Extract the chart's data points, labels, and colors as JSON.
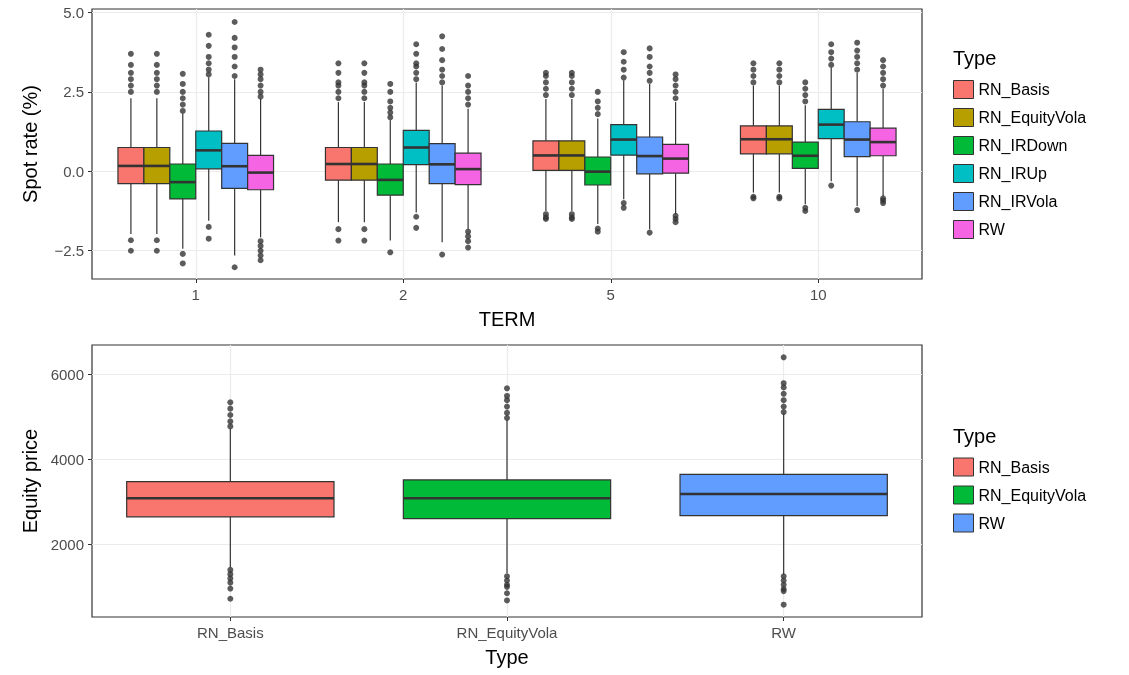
{
  "chart_data": [
    {
      "type": "box",
      "xlabel": "TERM",
      "ylabel": "Spot rate (%)",
      "legend_title": "Type",
      "legend": "right",
      "grid": true,
      "categories": [
        "1",
        "2",
        "5",
        "10"
      ],
      "ylim": [
        -3.39,
        5.11
      ],
      "yticks": [
        {
          "value": -2.5,
          "label": "−2.5"
        },
        {
          "value": 0,
          "label": "0.0"
        },
        {
          "value": 2.5,
          "label": "2.5"
        },
        {
          "value": 5,
          "label": "5.0"
        }
      ],
      "series": [
        {
          "name": "RN_Basis",
          "color": "#f8766d",
          "boxes": [
            {
              "low": -1.97,
              "q1": -0.39,
              "median": 0.17,
              "q3": 0.75,
              "high": 2.3,
              "outliers": [
                2.5,
                2.7,
                2.9,
                3.1,
                3.35,
                3.7,
                -2.17,
                -2.5
              ]
            },
            {
              "low": -1.6,
              "q1": -0.28,
              "median": 0.23,
              "q3": 0.75,
              "high": 2.18,
              "outliers": [
                2.3,
                2.5,
                2.7,
                2.8,
                3.1,
                3.4,
                -1.82,
                -2.18
              ]
            },
            {
              "low": -1.25,
              "q1": 0.03,
              "median": 0.5,
              "q3": 0.96,
              "high": 2.28,
              "outliers": [
                2.4,
                2.6,
                2.8,
                3.0,
                3.1,
                -1.35,
                -1.45,
                -1.5
              ]
            },
            {
              "low": -0.67,
              "q1": 0.55,
              "median": 1.01,
              "q3": 1.43,
              "high": 2.7,
              "outliers": [
                2.8,
                3.0,
                3.2,
                3.4,
                -0.8,
                -0.85
              ]
            }
          ]
        },
        {
          "name": "RN_EquityVola",
          "color": "#b79f00",
          "boxes": [
            {
              "low": -1.97,
              "q1": -0.39,
              "median": 0.17,
              "q3": 0.75,
              "high": 2.3,
              "outliers": [
                2.5,
                2.7,
                2.9,
                3.1,
                3.35,
                3.7,
                -2.17,
                -2.5
              ]
            },
            {
              "low": -1.6,
              "q1": -0.28,
              "median": 0.23,
              "q3": 0.75,
              "high": 2.18,
              "outliers": [
                2.3,
                2.5,
                2.7,
                2.8,
                3.1,
                3.4,
                -1.82,
                -2.18
              ]
            },
            {
              "low": -1.25,
              "q1": 0.03,
              "median": 0.5,
              "q3": 0.96,
              "high": 2.28,
              "outliers": [
                2.4,
                2.6,
                2.8,
                3.0,
                3.1,
                -1.35,
                -1.45,
                -1.5
              ]
            },
            {
              "low": -0.67,
              "q1": 0.55,
              "median": 1.01,
              "q3": 1.43,
              "high": 2.7,
              "outliers": [
                2.8,
                3.0,
                3.2,
                3.4,
                -0.8,
                -0.85
              ]
            }
          ]
        },
        {
          "name": "RN_IRDown",
          "color": "#00ba38",
          "boxes": [
            {
              "low": -2.44,
              "q1": -0.87,
              "median": -0.34,
              "q3": 0.23,
              "high": 1.82,
              "outliers": [
                1.9,
                2.1,
                2.3,
                2.5,
                2.75,
                3.07,
                -2.6,
                -2.9
              ]
            },
            {
              "low": -2.18,
              "q1": -0.75,
              "median": -0.27,
              "q3": 0.23,
              "high": 1.61,
              "outliers": [
                1.7,
                1.85,
                2.0,
                2.2,
                2.5,
                2.75,
                -2.55
              ]
            },
            {
              "low": -1.66,
              "q1": -0.43,
              "median": -0.01,
              "q3": 0.45,
              "high": 1.66,
              "outliers": [
                1.8,
                2.0,
                2.2,
                2.5,
                -1.8,
                -1.9
              ]
            },
            {
              "low": -1.04,
              "q1": 0.09,
              "median": 0.49,
              "q3": 0.92,
              "high": 2.08,
              "outliers": [
                2.2,
                2.4,
                2.6,
                2.8,
                -1.15,
                -1.25
              ]
            }
          ]
        },
        {
          "name": "RN_IRUp",
          "color": "#00bfc4",
          "boxes": [
            {
              "low": -1.56,
              "q1": 0.08,
              "median": 0.66,
              "q3": 1.27,
              "high": 2.96,
              "outliers": [
                3.05,
                3.2,
                3.4,
                3.6,
                3.95,
                4.3,
                -1.75,
                -2.12
              ]
            },
            {
              "low": -1.3,
              "q1": 0.21,
              "median": 0.75,
              "q3": 1.29,
              "high": 2.8,
              "outliers": [
                2.9,
                3.1,
                3.3,
                3.4,
                3.7,
                4.0,
                -1.43,
                -1.78
              ]
            },
            {
              "low": -0.88,
              "q1": 0.51,
              "median": 1.0,
              "q3": 1.47,
              "high": 2.86,
              "outliers": [
                2.95,
                3.2,
                3.45,
                3.75,
                -1.0,
                -1.15
              ]
            },
            {
              "low": -0.31,
              "q1": 1.03,
              "median": 1.47,
              "q3": 1.95,
              "high": 3.27,
              "outliers": [
                3.35,
                3.55,
                3.75,
                4.0,
                -0.45
              ]
            }
          ]
        },
        {
          "name": "RN_IRVola",
          "color": "#619cff",
          "boxes": [
            {
              "low": -2.65,
              "q1": -0.54,
              "median": 0.16,
              "q3": 0.88,
              "high": 2.9,
              "outliers": [
                3.0,
                3.3,
                3.6,
                3.9,
                4.2,
                4.7,
                -3.02
              ]
            },
            {
              "low": -2.23,
              "q1": -0.39,
              "median": 0.22,
              "q3": 0.87,
              "high": 2.7,
              "outliers": [
                2.8,
                3.0,
                3.2,
                3.5,
                3.85,
                4.25,
                -2.62
              ]
            },
            {
              "low": -1.82,
              "q1": -0.08,
              "median": 0.48,
              "q3": 1.08,
              "high": 2.75,
              "outliers": [
                2.85,
                3.1,
                3.3,
                3.6,
                3.87,
                -1.93
              ]
            },
            {
              "low": -1.09,
              "q1": 0.46,
              "median": 1.0,
              "q3": 1.56,
              "high": 3.1,
              "outliers": [
                3.2,
                3.4,
                3.6,
                3.8,
                4.05,
                -1.22
              ]
            }
          ]
        },
        {
          "name": "RW",
          "color": "#f564e3",
          "boxes": [
            {
              "low": -2.08,
              "q1": -0.58,
              "median": -0.04,
              "q3": 0.5,
              "high": 2.28,
              "outliers": [
                2.35,
                2.5,
                2.7,
                2.9,
                3.05,
                3.2,
                -2.2,
                -2.35,
                -2.5,
                -2.65,
                -2.8
              ]
            },
            {
              "low": -1.82,
              "q1": -0.42,
              "median": 0.07,
              "q3": 0.57,
              "high": 1.97,
              "outliers": [
                2.1,
                2.3,
                2.5,
                2.7,
                3.0,
                -1.9,
                -2.05,
                -2.2,
                -2.4
              ]
            },
            {
              "low": -1.35,
              "q1": -0.06,
              "median": 0.4,
              "q3": 0.85,
              "high": 2.18,
              "outliers": [
                2.3,
                2.5,
                2.7,
                2.9,
                3.05,
                -1.4,
                -1.5,
                -1.6
              ]
            },
            {
              "low": -0.78,
              "q1": 0.49,
              "median": 0.92,
              "q3": 1.36,
              "high": 2.6,
              "outliers": [
                2.7,
                2.9,
                3.1,
                3.3,
                3.5,
                -0.85,
                -0.92,
                -1.0
              ]
            }
          ]
        }
      ]
    },
    {
      "type": "box",
      "xlabel": "Type",
      "ylabel": "Equity price",
      "legend_title": "Type",
      "legend": "right",
      "grid": true,
      "categories": [
        "RN_Basis",
        "RN_EquityVola",
        "RW"
      ],
      "ylim": [
        290,
        6700
      ],
      "yticks": [
        2000,
        4000,
        6000
      ],
      "series": [
        {
          "name": "RN_Basis",
          "color": "#f8766d",
          "boxes": [
            {
              "low": 1460,
              "q1": 2650,
              "median": 3090,
              "q3": 3480,
              "high": 4720,
              "outliers": [
                4780,
                4900,
                5050,
                5200,
                5350,
                1400,
                1300,
                1200,
                1100,
                960,
                720
              ]
            },
            null,
            null
          ]
        },
        {
          "name": "RN_EquityVola",
          "color": "#00ba38",
          "boxes": [
            null,
            {
              "low": 1320,
              "q1": 2610,
              "median": 3090,
              "q3": 3520,
              "high": 4940,
              "outliers": [
                4980,
                5100,
                5250,
                5400,
                5500,
                5680,
                1250,
                1150,
                1050,
                1000,
                850,
                680
              ]
            },
            null
          ]
        },
        {
          "name": "RW",
          "color": "#619cff",
          "boxes": [
            null,
            null,
            {
              "low": 1290,
              "q1": 2680,
              "median": 3190,
              "q3": 3650,
              "high": 5080,
              "outliers": [
                5120,
                5250,
                5400,
                5550,
                5700,
                5800,
                6410,
                1250,
                1150,
                1050,
                950,
                900,
                580
              ]
            }
          ]
        }
      ]
    }
  ]
}
